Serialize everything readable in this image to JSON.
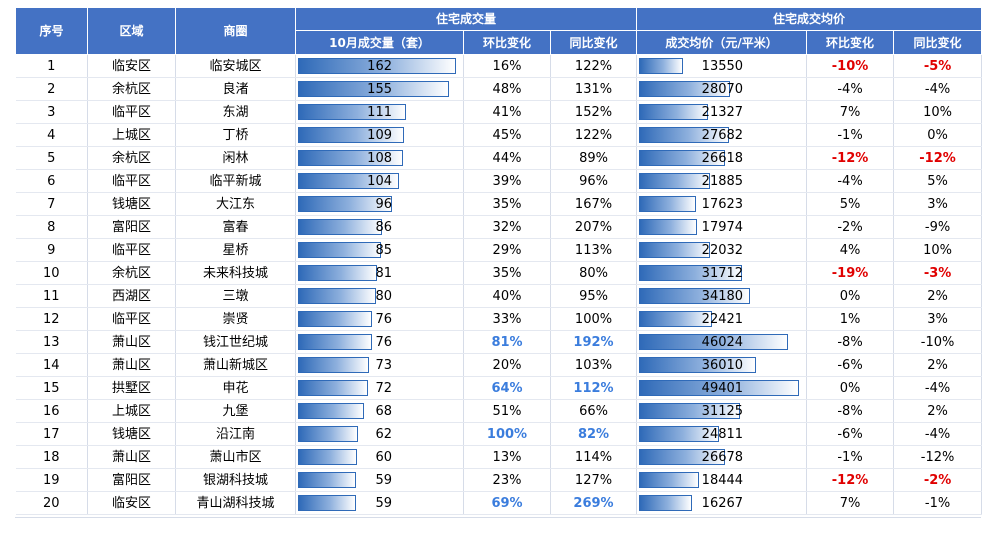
{
  "colors": {
    "header_bg": "#4472c4",
    "header_text": "#ffffff",
    "bar": "#2f6ab8",
    "highlight_red": "#e00000",
    "highlight_blue": "#3b7ddd"
  },
  "header": {
    "rank": "序号",
    "district": "区域",
    "area": "商圈",
    "volume_group": "住宅成交量",
    "price_group": "住宅成交均价",
    "volume": "10月成交量（套）",
    "volume_mom": "环比变化",
    "volume_yoy": "同比变化",
    "price": "成交均价（元/平米）",
    "price_mom": "环比变化",
    "price_yoy": "同比变化"
  },
  "chart_data": {
    "type": "table",
    "columns": [
      "序号",
      "区域",
      "商圈",
      "10月成交量（套）",
      "环比变化",
      "同比变化",
      "成交均价（元/平米）",
      "环比变化",
      "同比变化"
    ],
    "volume_max": 162,
    "price_max": 49401,
    "rows": [
      {
        "rank": "1",
        "district": "临安区",
        "area": "临安城区",
        "volume": 162,
        "vol_mom": "16%",
        "vol_yoy": "122%",
        "price": 13550,
        "price_mom": "-10%",
        "price_yoy": "-5%",
        "vol_hl": "",
        "price_hl": "red"
      },
      {
        "rank": "2",
        "district": "余杭区",
        "area": "良渚",
        "volume": 155,
        "vol_mom": "48%",
        "vol_yoy": "131%",
        "price": 28070,
        "price_mom": "-4%",
        "price_yoy": "-4%",
        "vol_hl": "",
        "price_hl": ""
      },
      {
        "rank": "3",
        "district": "临平区",
        "area": "东湖",
        "volume": 111,
        "vol_mom": "41%",
        "vol_yoy": "152%",
        "price": 21327,
        "price_mom": "7%",
        "price_yoy": "10%",
        "vol_hl": "",
        "price_hl": ""
      },
      {
        "rank": "4",
        "district": "上城区",
        "area": "丁桥",
        "volume": 109,
        "vol_mom": "45%",
        "vol_yoy": "122%",
        "price": 27682,
        "price_mom": "-1%",
        "price_yoy": "0%",
        "vol_hl": "",
        "price_hl": ""
      },
      {
        "rank": "5",
        "district": "余杭区",
        "area": "闲林",
        "volume": 108,
        "vol_mom": "44%",
        "vol_yoy": "89%",
        "price": 26618,
        "price_mom": "-12%",
        "price_yoy": "-12%",
        "vol_hl": "",
        "price_hl": "red"
      },
      {
        "rank": "6",
        "district": "临平区",
        "area": "临平新城",
        "volume": 104,
        "vol_mom": "39%",
        "vol_yoy": "96%",
        "price": 21885,
        "price_mom": "-4%",
        "price_yoy": "5%",
        "vol_hl": "",
        "price_hl": ""
      },
      {
        "rank": "7",
        "district": "钱塘区",
        "area": "大江东",
        "volume": 96,
        "vol_mom": "35%",
        "vol_yoy": "167%",
        "price": 17623,
        "price_mom": "5%",
        "price_yoy": "3%",
        "vol_hl": "",
        "price_hl": ""
      },
      {
        "rank": "8",
        "district": "富阳区",
        "area": "富春",
        "volume": 86,
        "vol_mom": "32%",
        "vol_yoy": "207%",
        "price": 17974,
        "price_mom": "-2%",
        "price_yoy": "-9%",
        "vol_hl": "",
        "price_hl": ""
      },
      {
        "rank": "9",
        "district": "临平区",
        "area": "星桥",
        "volume": 85,
        "vol_mom": "29%",
        "vol_yoy": "113%",
        "price": 22032,
        "price_mom": "4%",
        "price_yoy": "10%",
        "vol_hl": "",
        "price_hl": ""
      },
      {
        "rank": "10",
        "district": "余杭区",
        "area": "未来科技城",
        "volume": 81,
        "vol_mom": "35%",
        "vol_yoy": "80%",
        "price": 31712,
        "price_mom": "-19%",
        "price_yoy": "-3%",
        "vol_hl": "",
        "price_hl": "red"
      },
      {
        "rank": "11",
        "district": "西湖区",
        "area": "三墩",
        "volume": 80,
        "vol_mom": "40%",
        "vol_yoy": "95%",
        "price": 34180,
        "price_mom": "0%",
        "price_yoy": "2%",
        "vol_hl": "",
        "price_hl": ""
      },
      {
        "rank": "12",
        "district": "临平区",
        "area": "崇贤",
        "volume": 76,
        "vol_mom": "33%",
        "vol_yoy": "100%",
        "price": 22421,
        "price_mom": "1%",
        "price_yoy": "3%",
        "vol_hl": "",
        "price_hl": ""
      },
      {
        "rank": "13",
        "district": "萧山区",
        "area": "钱江世纪城",
        "volume": 76,
        "vol_mom": "81%",
        "vol_yoy": "192%",
        "price": 46024,
        "price_mom": "-8%",
        "price_yoy": "-10%",
        "vol_hl": "blue",
        "price_hl": ""
      },
      {
        "rank": "14",
        "district": "萧山区",
        "area": "萧山新城区",
        "volume": 73,
        "vol_mom": "20%",
        "vol_yoy": "103%",
        "price": 36010,
        "price_mom": "-6%",
        "price_yoy": "2%",
        "vol_hl": "",
        "price_hl": ""
      },
      {
        "rank": "15",
        "district": "拱墅区",
        "area": "申花",
        "volume": 72,
        "vol_mom": "64%",
        "vol_yoy": "112%",
        "price": 49401,
        "price_mom": "0%",
        "price_yoy": "-4%",
        "vol_hl": "blue",
        "price_hl": ""
      },
      {
        "rank": "16",
        "district": "上城区",
        "area": "九堡",
        "volume": 68,
        "vol_mom": "51%",
        "vol_yoy": "66%",
        "price": 31125,
        "price_mom": "-8%",
        "price_yoy": "2%",
        "vol_hl": "",
        "price_hl": ""
      },
      {
        "rank": "17",
        "district": "钱塘区",
        "area": "沿江南",
        "volume": 62,
        "vol_mom": "100%",
        "vol_yoy": "82%",
        "price": 24811,
        "price_mom": "-6%",
        "price_yoy": "-4%",
        "vol_hl": "blue",
        "price_hl": ""
      },
      {
        "rank": "18",
        "district": "萧山区",
        "area": "萧山市区",
        "volume": 60,
        "vol_mom": "13%",
        "vol_yoy": "114%",
        "price": 26678,
        "price_mom": "-1%",
        "price_yoy": "-12%",
        "vol_hl": "",
        "price_hl": ""
      },
      {
        "rank": "19",
        "district": "富阳区",
        "area": "银湖科技城",
        "volume": 59,
        "vol_mom": "23%",
        "vol_yoy": "127%",
        "price": 18444,
        "price_mom": "-12%",
        "price_yoy": "-2%",
        "vol_hl": "",
        "price_hl": "red"
      },
      {
        "rank": "20",
        "district": "临安区",
        "area": "青山湖科技城",
        "volume": 59,
        "vol_mom": "69%",
        "vol_yoy": "269%",
        "price": 16267,
        "price_mom": "7%",
        "price_yoy": "-1%",
        "vol_hl": "blue",
        "price_hl": ""
      }
    ]
  }
}
